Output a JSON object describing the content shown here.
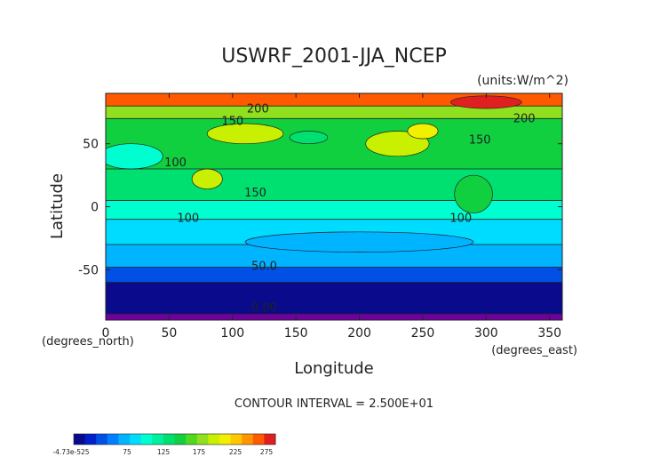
{
  "chart_data": {
    "type": "heatmap",
    "title": "USWRF_2001-JJA_NCEP",
    "units_label": "(units:W/m^2)",
    "xlabel": "Longitude",
    "ylabel": "Latitude",
    "x_unit_label": "(degrees_east)",
    "y_unit_label": "(degrees_north)",
    "xlim": [
      0,
      360
    ],
    "ylim": [
      -90,
      90
    ],
    "x_ticks": [
      0,
      50,
      100,
      150,
      200,
      250,
      300,
      350
    ],
    "y_ticks": [
      -50,
      0,
      50
    ],
    "contour_interval_text": "CONTOUR INTERVAL = 2.500E+01",
    "contour_labels": [
      {
        "text": "200",
        "lon": 120,
        "lat": 75
      },
      {
        "text": "150",
        "lon": 100,
        "lat": 65
      },
      {
        "text": "150",
        "lon": 295,
        "lat": 50
      },
      {
        "text": "200",
        "lon": 330,
        "lat": 67
      },
      {
        "text": "100",
        "lon": 55,
        "lat": 32
      },
      {
        "text": "150",
        "lon": 118,
        "lat": 8
      },
      {
        "text": "100",
        "lon": 65,
        "lat": -12
      },
      {
        "text": "100",
        "lon": 280,
        "lat": -12
      },
      {
        "text": "50.0",
        "lon": 125,
        "lat": -50
      },
      {
        "text": "0.00",
        "lon": 125,
        "lat": -83
      }
    ],
    "colorbar": {
      "tick_labels": [
        "-4.73e-525",
        "75",
        "125",
        "175",
        "225",
        "275"
      ],
      "colors": [
        "#0a0a8c",
        "#0020c8",
        "#0050e6",
        "#0080ff",
        "#00b4ff",
        "#00dcff",
        "#00ffd0",
        "#00f0a0",
        "#00e070",
        "#10d040",
        "#50d820",
        "#90e020",
        "#c8f000",
        "#f0f000",
        "#ffc800",
        "#ff9600",
        "#ff5a00",
        "#e02020"
      ]
    },
    "bands": [
      {
        "lat_from": 90,
        "lat_to": 80,
        "level": 225,
        "color": "#ff5a00"
      },
      {
        "lat_from": 80,
        "lat_to": 70,
        "level": 175,
        "color": "#90e020"
      },
      {
        "lat_from": 70,
        "lat_to": 30,
        "level": 150,
        "color": "#10d040"
      },
      {
        "lat_from": 30,
        "lat_to": 5,
        "level": 125,
        "color": "#00e070"
      },
      {
        "lat_from": 5,
        "lat_to": -10,
        "level": 100,
        "color": "#00ffd0"
      },
      {
        "lat_from": -10,
        "lat_to": -30,
        "level": 90,
        "color": "#00dcff"
      },
      {
        "lat_from": -30,
        "lat_to": -48,
        "level": 75,
        "color": "#00b4ff"
      },
      {
        "lat_from": -48,
        "lat_to": -60,
        "level": 50,
        "color": "#0050e6"
      },
      {
        "lat_from": -60,
        "lat_to": -85,
        "level": 25,
        "color": "#0a0a8c"
      },
      {
        "lat_from": -85,
        "lat_to": -90,
        "level": 0,
        "color": "#7000a0"
      }
    ],
    "patches": [
      {
        "lon": 300,
        "lat": 83,
        "rx": 28,
        "ry": 5,
        "level": 275,
        "color": "#e02020"
      },
      {
        "lon": 230,
        "lat": 50,
        "rx": 25,
        "ry": 10,
        "level": 175,
        "color": "#c8f000"
      },
      {
        "lon": 110,
        "lat": 58,
        "rx": 30,
        "ry": 8,
        "level": 175,
        "color": "#c8f000"
      },
      {
        "lon": 80,
        "lat": 22,
        "rx": 12,
        "ry": 8,
        "level": 175,
        "color": "#c8f000"
      },
      {
        "lon": 250,
        "lat": 60,
        "rx": 12,
        "ry": 6,
        "level": 200,
        "color": "#f0f000"
      },
      {
        "lon": 20,
        "lat": 40,
        "rx": 25,
        "ry": 10,
        "level": 100,
        "color": "#00ffd0"
      },
      {
        "lon": 160,
        "lat": 55,
        "rx": 15,
        "ry": 5,
        "level": 125,
        "color": "#00e070"
      },
      {
        "lon": 290,
        "lat": 10,
        "rx": 15,
        "ry": 15,
        "level": 150,
        "color": "#10d040"
      },
      {
        "lon": 200,
        "lat": -28,
        "rx": 90,
        "ry": 8,
        "level": 75,
        "color": "#00b4ff"
      }
    ]
  }
}
